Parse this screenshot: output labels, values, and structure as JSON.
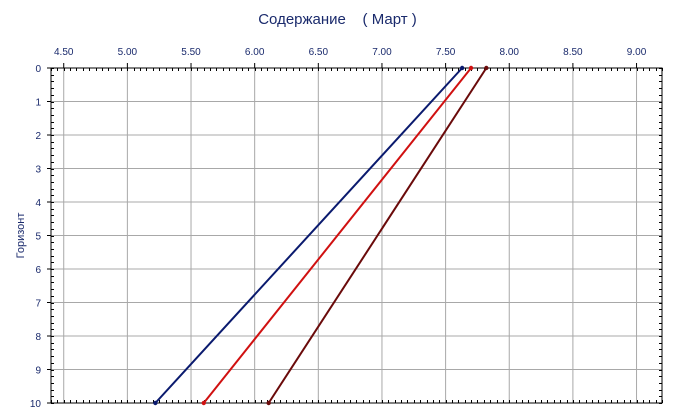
{
  "chart_data": {
    "type": "line",
    "title": "Содержание    ( Март )",
    "xlabel": "",
    "ylabel": "Горизонт",
    "x_axis_position": "top",
    "y_axis_inverted": true,
    "xlim": [
      4.4,
      9.2
    ],
    "ylim": [
      0,
      10
    ],
    "x_ticks": [
      "4.50",
      "5.00",
      "5.50",
      "6.00",
      "6.50",
      "7.00",
      "7.50",
      "8.00",
      "8.50",
      "9.00"
    ],
    "y_ticks": [
      "0",
      "1",
      "2",
      "3",
      "4",
      "5",
      "6",
      "7",
      "8",
      "9",
      "10"
    ],
    "grid": true,
    "legend": "none",
    "series": [
      {
        "color": "#0a1a6e",
        "points": [
          [
            7.63,
            0
          ],
          [
            5.22,
            10
          ]
        ]
      },
      {
        "color": "#d01010",
        "points": [
          [
            7.7,
            0
          ],
          [
            5.6,
            10
          ]
        ]
      },
      {
        "color": "#6a0a0a",
        "points": [
          [
            7.82,
            0
          ],
          [
            6.11,
            10
          ]
        ]
      }
    ]
  }
}
